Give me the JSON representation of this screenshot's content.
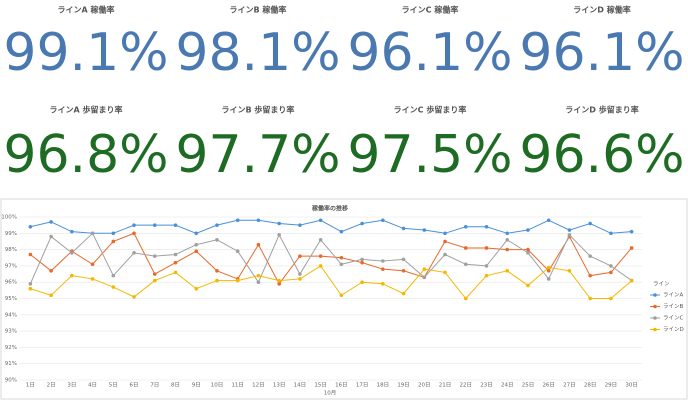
{
  "kpis": [
    {
      "title": "ラインA 稼働率",
      "value": "99.1%"
    },
    {
      "title": "ラインB 稼働率",
      "value": "98.1%"
    },
    {
      "title": "ラインC 稼働率",
      "value": "96.1%"
    },
    {
      "title": "ラインD 稼働率",
      "value": "96.1%"
    },
    {
      "title": "ラインA 歩留まり率",
      "value": "96.8%"
    },
    {
      "title": "ラインB 歩留まり率",
      "value": "97.7%"
    },
    {
      "title": "ラインC 歩留まり率",
      "value": "97.5%"
    },
    {
      "title": "ラインD 歩留まり率",
      "value": "96.6%"
    }
  ],
  "chart_data": {
    "type": "line",
    "title": "稼働率の推移",
    "x_label": "10月",
    "legend_title": "ライン",
    "grid": true,
    "categories": [
      "1日",
      "2日",
      "3日",
      "4日",
      "5日",
      "6日",
      "7日",
      "8日",
      "9日",
      "10日",
      "11日",
      "12日",
      "13日",
      "14日",
      "15日",
      "16日",
      "17日",
      "18日",
      "19日",
      "20日",
      "21日",
      "22日",
      "23日",
      "24日",
      "25日",
      "26日",
      "27日",
      "28日",
      "29日",
      "30日"
    ],
    "ylim": [
      90,
      100
    ],
    "yticks": [
      {
        "value": 90,
        "label": "90%"
      },
      {
        "value": 91,
        "label": "91%"
      },
      {
        "value": 92,
        "label": "92%"
      },
      {
        "value": 93,
        "label": "93%"
      },
      {
        "value": 94,
        "label": "94%"
      },
      {
        "value": 95,
        "label": "95%"
      },
      {
        "value": 96,
        "label": "96%"
      },
      {
        "value": 97,
        "label": "97%"
      },
      {
        "value": 98,
        "label": "98%"
      },
      {
        "value": 99,
        "label": "99%"
      },
      {
        "value": 100,
        "label": "100%"
      }
    ],
    "series": [
      {
        "name": "ラインA",
        "color": "#4a90d9",
        "values": [
          99.4,
          99.7,
          99.1,
          99.0,
          99.0,
          99.5,
          99.5,
          99.5,
          99.0,
          99.5,
          99.8,
          99.8,
          99.6,
          99.5,
          99.8,
          99.1,
          99.6,
          99.8,
          99.3,
          99.2,
          99.0,
          99.4,
          99.4,
          99.0,
          99.2,
          99.8,
          99.2,
          99.6,
          99.0,
          99.1
        ]
      },
      {
        "name": "ラインB",
        "color": "#e8692a",
        "values": [
          97.7,
          96.7,
          97.9,
          97.1,
          98.5,
          99.0,
          96.5,
          97.2,
          97.9,
          96.7,
          96.2,
          98.3,
          95.9,
          97.6,
          97.6,
          97.5,
          97.2,
          96.8,
          96.7,
          96.3,
          98.5,
          98.1,
          98.1,
          98.0,
          98.0,
          96.7,
          98.8,
          96.4,
          96.6,
          98.1
        ]
      },
      {
        "name": "ラインC",
        "color": "#a0a0a0",
        "values": [
          95.9,
          98.8,
          97.8,
          99.0,
          96.4,
          97.8,
          97.6,
          97.7,
          98.3,
          98.6,
          97.9,
          96.0,
          98.9,
          96.5,
          98.6,
          97.1,
          97.4,
          97.3,
          97.4,
          96.3,
          97.7,
          97.1,
          97.0,
          98.6,
          97.8,
          96.2,
          98.9,
          97.6,
          97.0,
          96.1
        ]
      },
      {
        "name": "ラインD",
        "color": "#f5b800",
        "values": [
          95.6,
          95.2,
          96.4,
          96.2,
          95.7,
          95.1,
          96.1,
          96.6,
          95.6,
          96.1,
          96.1,
          96.4,
          96.1,
          96.2,
          97.0,
          95.2,
          96.0,
          95.9,
          95.3,
          96.8,
          96.6,
          95.0,
          96.4,
          96.7,
          95.8,
          96.9,
          96.7,
          95.0,
          95.0,
          96.1
        ]
      }
    ]
  }
}
